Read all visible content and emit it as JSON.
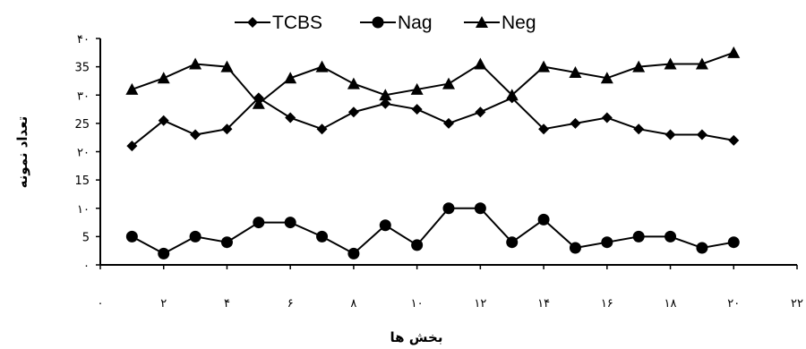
{
  "chart_data": {
    "type": "line",
    "title": "",
    "xlabel": "بخش ها",
    "ylabel": "تعداد نمونه",
    "xlim": [
      0,
      22
    ],
    "ylim": [
      0,
      40
    ],
    "x_ticks": [
      {
        "value": 0,
        "label": "۰"
      },
      {
        "value": 2,
        "label": "۲"
      },
      {
        "value": 4,
        "label": "۴"
      },
      {
        "value": 6,
        "label": "۶"
      },
      {
        "value": 8,
        "label": "۸"
      },
      {
        "value": 10,
        "label": "۱۰"
      },
      {
        "value": 12,
        "label": "۱۲"
      },
      {
        "value": 14,
        "label": "۱۴"
      },
      {
        "value": 16,
        "label": "۱۶"
      },
      {
        "value": 18,
        "label": "۱۸"
      },
      {
        "value": 20,
        "label": "۲۰"
      },
      {
        "value": 22,
        "label": "۲۲"
      }
    ],
    "y_ticks": [
      {
        "value": 0,
        "label": "۰"
      },
      {
        "value": 5,
        "label": "5"
      },
      {
        "value": 10,
        "label": "۱۰"
      },
      {
        "value": 15,
        "label": "15"
      },
      {
        "value": 20,
        "label": "۲۰"
      },
      {
        "value": 25,
        "label": "25"
      },
      {
        "value": 30,
        "label": "۳۰"
      },
      {
        "value": 35,
        "label": "35"
      },
      {
        "value": 40,
        "label": "۴۰"
      }
    ],
    "x": [
      1,
      2,
      3,
      4,
      5,
      6,
      7,
      8,
      9,
      10,
      11,
      12,
      13,
      14,
      15,
      16,
      17,
      18,
      19,
      20
    ],
    "legend_position": "top-center",
    "grid": false,
    "series": [
      {
        "name": "TCBS",
        "marker": "diamond",
        "values": [
          21,
          25.5,
          23,
          24,
          29.5,
          26,
          24,
          27,
          28.5,
          27.5,
          25,
          27,
          29.5,
          24,
          25,
          26,
          24,
          23,
          23,
          22
        ]
      },
      {
        "name": "Nag",
        "marker": "circle",
        "values": [
          5,
          2,
          5,
          4,
          7.5,
          7.5,
          5,
          2,
          7,
          3.5,
          10,
          10,
          4,
          8,
          3,
          4,
          5,
          5,
          3,
          4
        ]
      },
      {
        "name": "Neg",
        "marker": "triangle",
        "values": [
          31,
          33,
          35.5,
          35,
          28.5,
          33,
          35,
          32,
          30,
          31,
          32,
          35.5,
          30,
          35,
          34,
          33,
          35,
          35.5,
          35.5,
          37.5
        ]
      }
    ]
  }
}
